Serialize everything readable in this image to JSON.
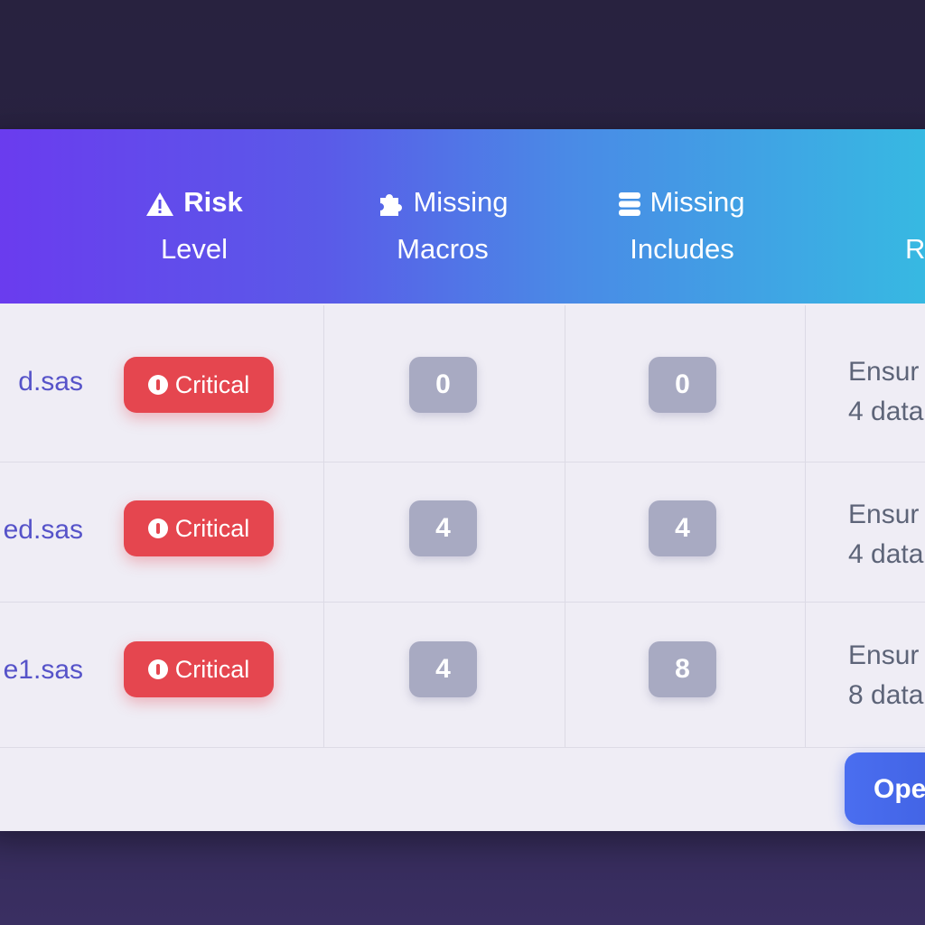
{
  "table": {
    "headers": [
      {
        "icon": "warning-icon",
        "line1": "Risk",
        "line2": "Level"
      },
      {
        "icon": "puzzle-icon",
        "line1": "Missing",
        "line2": "Macros"
      },
      {
        "icon": "database-icon",
        "line1": "Missing",
        "line2": "Includes"
      },
      {
        "line2": "R"
      }
    ],
    "rows": [
      {
        "file": "d.sas",
        "risk": "Critical",
        "macros": "0",
        "includes": "0",
        "rec1": "Ensur",
        "rec2": "4 data"
      },
      {
        "file": "ed.sas",
        "risk": "Critical",
        "macros": "4",
        "includes": "4",
        "rec1": "Ensur",
        "rec2": "4 data"
      },
      {
        "file": "e1.sas",
        "risk": "Critical",
        "macros": "4",
        "includes": "8",
        "rec1": "Ensur",
        "rec2": "8 data"
      }
    ]
  },
  "footer": {
    "open_label": "Ope"
  },
  "colors": {
    "critical": "#e5464f",
    "link": "#5653c9",
    "primary": "#4a6ef0"
  }
}
